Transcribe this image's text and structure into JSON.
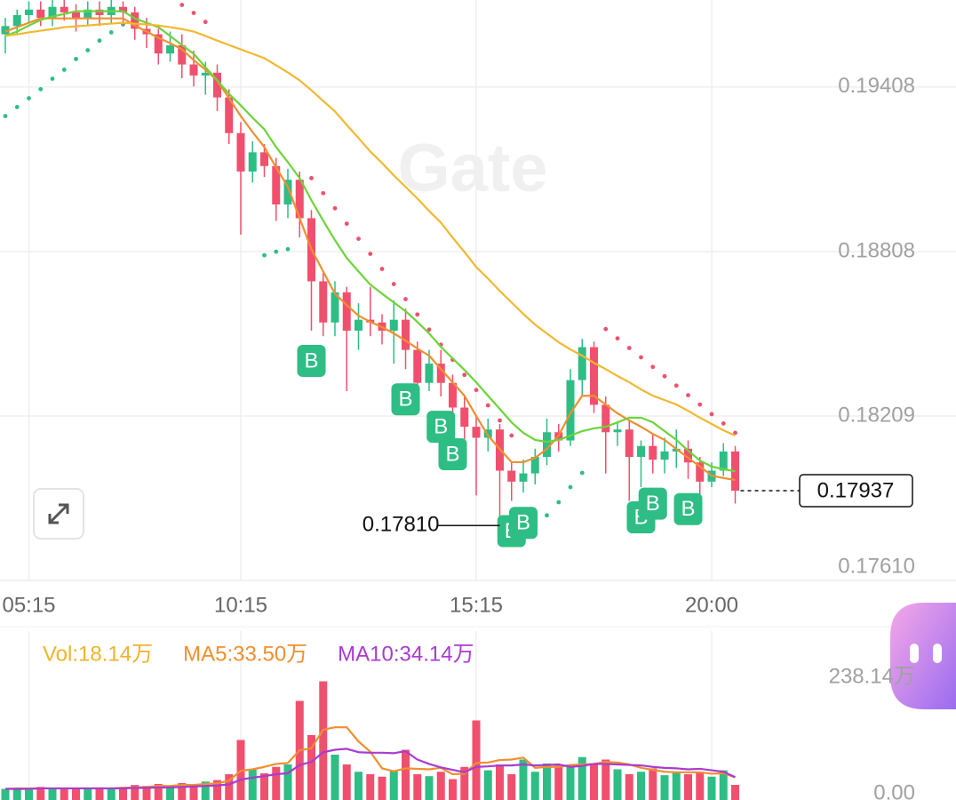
{
  "chart_data": {
    "type": "candlestick",
    "watermark": "Gate",
    "categories": [
      null,
      null,
      "05:15",
      null,
      null,
      null,
      null,
      null,
      null,
      null,
      null,
      null,
      null,
      null,
      null,
      null,
      null,
      null,
      null,
      null,
      "10:15",
      null,
      null,
      null,
      null,
      null,
      null,
      null,
      null,
      null,
      null,
      null,
      null,
      null,
      null,
      null,
      null,
      null,
      null,
      null,
      "15:15",
      null,
      null,
      null,
      null,
      null,
      null,
      null,
      null,
      null,
      null,
      null,
      null,
      null,
      null,
      null,
      null,
      null,
      null,
      null,
      "20:00",
      null,
      null
    ],
    "open": [
      0.196,
      0.1963,
      0.1967,
      0.1969,
      0.1966,
      0.197,
      0.1968,
      0.1966,
      0.1969,
      0.1967,
      0.197,
      0.1968,
      0.1962,
      0.196,
      0.1953,
      0.1956,
      0.1949,
      0.1945,
      0.1946,
      0.1937,
      0.1924,
      0.191,
      0.1917,
      0.1912,
      0.1898,
      0.1907,
      0.1893,
      0.187,
      0.1855,
      0.1866,
      0.1852,
      0.1856,
      0.1855,
      0.1852,
      0.1856,
      0.1845,
      0.1833,
      0.184,
      0.1833,
      0.1824,
      0.1817,
      0.1813,
      0.1816,
      0.1801,
      0.1797,
      0.18,
      0.1806,
      0.1815,
      0.1812,
      0.1834,
      0.1846,
      0.1825,
      0.1815,
      0.1816,
      0.1806,
      0.181,
      0.1805,
      0.1808,
      0.1809,
      0.1804,
      0.1797,
      0.1801,
      0.1808
    ],
    "high": [
      0.1966,
      0.1969,
      0.1972,
      0.1972,
      0.1973,
      0.1973,
      0.1971,
      0.1972,
      0.1972,
      0.1973,
      0.1972,
      0.197,
      0.1966,
      0.1962,
      0.1961,
      0.196,
      0.1954,
      0.195,
      0.1949,
      0.194,
      0.1928,
      0.1921,
      0.192,
      0.1915,
      0.1911,
      0.191,
      0.1896,
      0.1873,
      0.187,
      0.1868,
      0.1862,
      0.1868,
      0.1858,
      0.1863,
      0.186,
      0.1848,
      0.1845,
      0.1845,
      0.1836,
      0.1828,
      0.1821,
      0.182,
      0.1818,
      0.1804,
      0.1805,
      0.1809,
      0.182,
      0.1818,
      0.1838,
      0.1849,
      0.1848,
      0.1828,
      0.1819,
      0.1819,
      0.1812,
      0.1814,
      0.1813,
      0.1816,
      0.1812,
      0.1806,
      0.1804,
      0.1811,
      0.181
    ],
    "low": [
      0.1953,
      0.196,
      0.1964,
      0.1963,
      0.1963,
      0.1965,
      0.1961,
      0.1963,
      0.1963,
      0.1964,
      0.1963,
      0.1958,
      0.1955,
      0.1949,
      0.195,
      0.1944,
      0.1941,
      0.1938,
      0.1932,
      0.192,
      0.1887,
      0.1906,
      0.1908,
      0.1892,
      0.1893,
      0.1886,
      0.1852,
      0.185,
      0.185,
      0.183,
      0.1845,
      0.185,
      0.1847,
      0.184,
      0.1838,
      0.1826,
      0.183,
      0.1828,
      0.1818,
      0.1812,
      0.1792,
      0.1808,
      0.1781,
      0.179,
      0.1793,
      0.1796,
      0.1803,
      0.1808,
      0.181,
      0.1828,
      0.1822,
      0.18,
      0.181,
      0.179,
      0.1795,
      0.18,
      0.18,
      0.1802,
      0.1798,
      0.1792,
      0.1795,
      0.1799,
      0.1789
    ],
    "close": [
      0.1963,
      0.1967,
      0.1969,
      0.1966,
      0.197,
      0.1968,
      0.1966,
      0.1969,
      0.1967,
      0.197,
      0.1968,
      0.1962,
      0.196,
      0.1953,
      0.1956,
      0.1949,
      0.1945,
      0.1946,
      0.1937,
      0.1924,
      0.191,
      0.1917,
      0.1912,
      0.1898,
      0.1907,
      0.1893,
      0.187,
      0.1855,
      0.1866,
      0.1852,
      0.1856,
      0.1855,
      0.1852,
      0.1856,
      0.1845,
      0.1833,
      0.184,
      0.1833,
      0.1824,
      0.1817,
      0.1813,
      0.1816,
      0.1801,
      0.1797,
      0.18,
      0.1806,
      0.1815,
      0.1812,
      0.1834,
      0.1846,
      0.1825,
      0.1815,
      0.1816,
      0.1806,
      0.181,
      0.1805,
      0.1808,
      0.1809,
      0.1804,
      0.1797,
      0.1801,
      0.1808,
      0.17937
    ],
    "up_color": "#2ebd85",
    "down_color": "#f0506e",
    "ylim": [
      0.1761,
      0.19725
    ],
    "yticks": [
      0.19408,
      0.18808,
      0.18209,
      {
        "value": 0.1761,
        "label": "0.17610"
      }
    ],
    "grid": true,
    "lines": [
      {
        "color": "#ef8f2f",
        "values": [
          0.1961,
          0.19626,
          0.19642,
          0.19658,
          0.19658,
          0.19658,
          0.19658,
          0.19658,
          0.19658,
          0.19658,
          0.19658,
          0.19632,
          0.1961,
          0.19587,
          0.19568,
          0.19545,
          0.19506,
          0.19471,
          0.19432,
          0.19367,
          0.19302,
          0.19244,
          0.19189,
          0.19115,
          0.19044,
          0.1893,
          0.18817,
          0.18736,
          0.18655,
          0.18613,
          0.18575,
          0.18552,
          0.18533,
          0.1851,
          0.18484,
          0.18455,
          0.18429,
          0.1838,
          0.18332,
          0.18283,
          0.18209,
          0.18138,
          0.18089,
          0.18041,
          0.18041,
          0.18057,
          0.18089,
          0.18138,
          0.18219,
          0.18283,
          0.18283,
          0.18251,
          0.18219,
          0.18193,
          0.1817,
          0.18144,
          0.18122,
          0.18089,
          0.18057,
          0.18025,
          0.17992,
          0.17983,
          0.17976
        ]
      },
      {
        "color": "#6cd43a",
        "values": [
          0.19594,
          0.1961,
          0.19632,
          0.19652,
          0.19665,
          0.19674,
          0.19684,
          0.19684,
          0.19684,
          0.19684,
          0.19684,
          0.19658,
          0.19642,
          0.19626,
          0.19594,
          0.19561,
          0.19529,
          0.1948,
          0.19432,
          0.19383,
          0.19341,
          0.19296,
          0.19254,
          0.19189,
          0.19134,
          0.19076,
          0.18995,
          0.18921,
          0.1885,
          0.18785,
          0.18736,
          0.18688,
          0.18655,
          0.18623,
          0.18591,
          0.18552,
          0.1851,
          0.18461,
          0.18419,
          0.18377,
          0.18332,
          0.18283,
          0.18235,
          0.18186,
          0.18148,
          0.18122,
          0.18115,
          0.18122,
          0.18138,
          0.18154,
          0.18164,
          0.1817,
          0.18186,
          0.18203,
          0.18203,
          0.18186,
          0.18154,
          0.18122,
          0.18083,
          0.18047,
          0.18025,
          0.18015,
          0.18008
        ]
      },
      {
        "color": "#f2b830",
        "values": [
          0.19594,
          0.196,
          0.19607,
          0.19613,
          0.19619,
          0.19626,
          0.19629,
          0.19632,
          0.19636,
          0.19639,
          0.19642,
          0.19639,
          0.19636,
          0.19632,
          0.19626,
          0.19619,
          0.1961,
          0.19594,
          0.19577,
          0.19561,
          0.19545,
          0.19529,
          0.19513,
          0.19487,
          0.19461,
          0.19432,
          0.19396,
          0.19357,
          0.19319,
          0.1927,
          0.19222,
          0.19173,
          0.19131,
          0.19086,
          0.19044,
          0.19002,
          0.18956,
          0.18914,
          0.18859,
          0.18807,
          0.18752,
          0.1871,
          0.18665,
          0.18623,
          0.18581,
          0.18542,
          0.1851,
          0.18478,
          0.18452,
          0.18429,
          0.18403,
          0.1838,
          0.18355,
          0.18332,
          0.18306,
          0.18283,
          0.18267,
          0.18251,
          0.18228,
          0.18203,
          0.1818,
          0.18157,
          0.18138
        ]
      }
    ],
    "sar": [
      0.19302,
      0.19335,
      0.19367,
      0.194,
      0.19438,
      0.19471,
      0.1951,
      0.19542,
      0.19577,
      0.19607,
      0.19636,
      null,
      null,
      null,
      null,
      0.19707,
      0.19678,
      0.19645,
      null,
      null,
      null,
      null,
      0.18795,
      0.18808,
      0.18817,
      null,
      0.19076,
      0.19021,
      0.18966,
      0.1891,
      0.18855,
      0.188,
      0.18745,
      0.1869,
      0.18635,
      0.18579,
      0.18524,
      0.18469,
      0.18414,
      0.18359,
      0.18304,
      0.18248,
      0.18193,
      0.18138,
      null,
      0.17814,
      0.17847,
      0.17895,
      0.1795,
      0.18002,
      null,
      0.18526,
      0.18492,
      0.18457,
      0.18423,
      0.18388,
      0.18354,
      0.1832,
      0.18285,
      0.18251,
      0.18216,
      0.18182,
      0.18148
    ],
    "signals": [
      null,
      null,
      null,
      null,
      null,
      null,
      null,
      null,
      null,
      null,
      null,
      null,
      null,
      null,
      null,
      null,
      null,
      null,
      null,
      null,
      null,
      null,
      null,
      null,
      null,
      null,
      "B",
      null,
      null,
      null,
      null,
      null,
      null,
      null,
      "B",
      null,
      null,
      "B",
      "B",
      null,
      null,
      null,
      null,
      "B",
      "B",
      null,
      null,
      null,
      null,
      null,
      null,
      null,
      null,
      null,
      "B",
      "B",
      null,
      null,
      "B",
      null,
      null,
      null,
      null
    ],
    "annotations": [
      {
        "text": "0.17810",
        "value": 0.1781
      }
    ],
    "volume": {
      "ylim": [
        0,
        238.14
      ],
      "yticks": [
        {
          "value": 238.14,
          "label": "238.14万"
        },
        {
          "value": 0,
          "label": "0.00"
        }
      ],
      "series": [
        {
          "name": "Vol:18.14万",
          "color": "#f0b429",
          "values": [
            10,
            12,
            8,
            14,
            10,
            12,
            9,
            11,
            13,
            10,
            14,
            18,
            16,
            20,
            14,
            22,
            18,
            25,
            28,
            40,
            110,
            50,
            42,
            55,
            60,
            190,
            120,
            230,
            80,
            60,
            45,
            40,
            35,
            48,
            90,
            40,
            36,
            45,
            30,
            55,
            150,
            48,
            60,
            40,
            70,
            45,
            62,
            58,
            60,
            75,
            62,
            70,
            50,
            40,
            45,
            52,
            38,
            44,
            40,
            45,
            35,
            48,
            18.14
          ]
        },
        {
          "name": "MA5:33.50万",
          "color": "#ef8f2f",
          "values": [
            10,
            11,
            11,
            11,
            11,
            11,
            11,
            11,
            11,
            11,
            12,
            13,
            14,
            16,
            16,
            18,
            18,
            20,
            21,
            27,
            47,
            50,
            55,
            61,
            63,
            89,
            93,
            131,
            136,
            136,
            107,
            86,
            52,
            46,
            52,
            51,
            50,
            53,
            40,
            41,
            63,
            64,
            69,
            70,
            74,
            53,
            55,
            55,
            59,
            60,
            61,
            65,
            64,
            60,
            53,
            49,
            45,
            44,
            44,
            44,
            41,
            42,
            33.5
          ]
        },
        {
          "name": "MA10:34.14万",
          "color": "#a93bd1",
          "values": [
            10,
            10,
            10,
            11,
            11,
            11,
            11,
            11,
            11,
            11,
            11,
            12,
            12,
            13,
            13,
            14,
            15,
            16,
            17,
            19,
            29,
            33,
            36,
            40,
            42,
            59,
            65,
            85,
            90,
            92,
            85,
            84,
            84,
            83,
            87,
            70,
            61,
            54,
            49,
            44,
            55,
            56,
            58,
            58,
            60,
            58,
            59,
            60,
            55,
            57,
            61,
            61,
            60,
            59,
            58,
            55,
            53,
            52,
            50,
            51,
            48,
            45,
            34.14
          ]
        }
      ]
    }
  }
}
